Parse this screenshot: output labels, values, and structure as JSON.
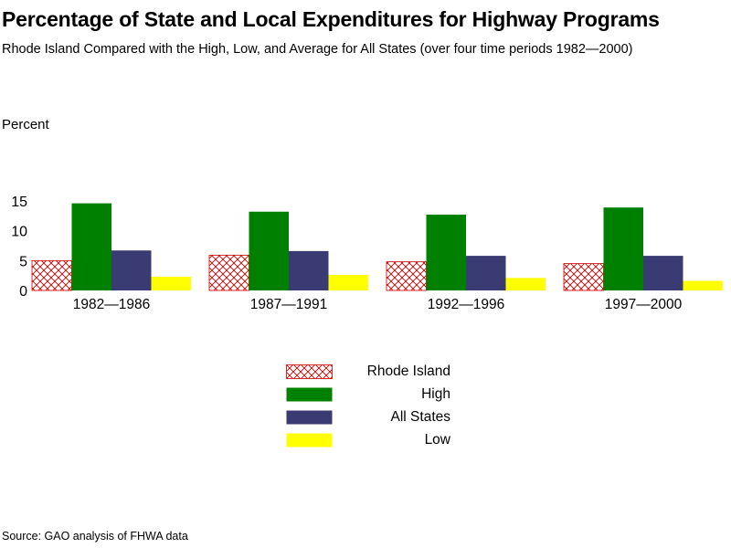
{
  "chart_data": {
    "type": "bar",
    "title": "Percentage of State and Local Expenditures for Highway Programs",
    "subtitle": "Rhode Island Compared with the High, Low, and Average for All States (over four time periods 1982—2000)",
    "ylabel": "Percent",
    "xlabel": "",
    "ylim": [
      0,
      15
    ],
    "yticks": [
      0,
      5,
      10,
      15
    ],
    "categories": [
      "1982—1986",
      "1987—1991",
      "1992—1996",
      "1997—2000"
    ],
    "series": [
      {
        "name": "Rhode Island",
        "values": [
          5.0,
          5.9,
          4.8,
          4.5
        ],
        "color": "#cc0000",
        "pattern": "crosshatch"
      },
      {
        "name": "High",
        "values": [
          14.6,
          13.2,
          12.7,
          13.9
        ],
        "color": "#008000"
      },
      {
        "name": "All States",
        "values": [
          6.7,
          6.6,
          5.8,
          5.8
        ],
        "color": "#3b3b73"
      },
      {
        "name": "Low",
        "values": [
          2.3,
          2.6,
          2.1,
          1.6
        ],
        "color": "#ffff00"
      }
    ],
    "grid": false,
    "legend_position": "bottom-center",
    "source": "Source: GAO analysis of FHWA data"
  }
}
